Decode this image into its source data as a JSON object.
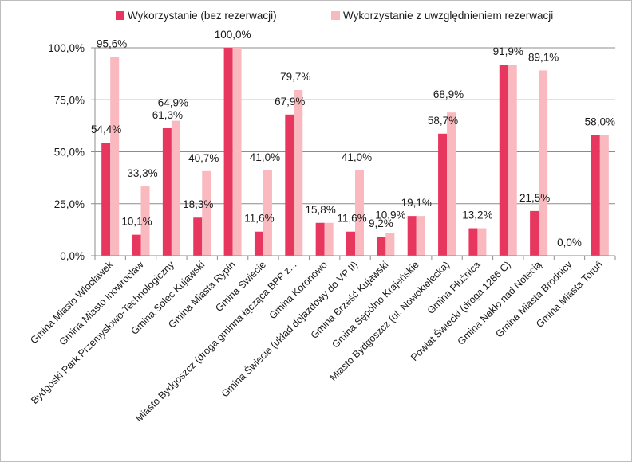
{
  "colors": {
    "series_1": "#e8375f",
    "series_2": "#f9b9bf",
    "grid": "#8c8c8c",
    "axis": "#8c8c8c"
  },
  "chart_data": {
    "type": "bar",
    "title": "",
    "xlabel": "",
    "ylabel": "",
    "ylim": [
      0,
      100
    ],
    "y_ticks": [
      "0,0%",
      "25,0%",
      "50,0%",
      "75,0%",
      "100,0%"
    ],
    "grid": "horizontal",
    "legend_position": "top",
    "categories": [
      "Gmina Miasto Włocławek",
      "Gmina Miasto Inowrocław",
      "Bydgoski Park Przemysłowo-Technologiczny",
      "Gmina Solec Kujawski",
      "Gmina Miasta Rypin",
      "Gmina Świecie",
      "Miasto Bydgoszcz (droga gminna łącząca BPP z...",
      "Gmina Koronowo",
      "Gmina Świecie (układ dojazdowy do VP II)",
      "Gmina Brześć Kujawski",
      "Gmina Sępólno Krajeńskie",
      "Miasto Bydgoszcz (ul. Nowokielecka)",
      "Gmina Płużnica",
      "Powiat Świecki (droga 1286 C)",
      "Gmina Nakło nad Notecią",
      "Gmina Miasta Brodnicy",
      "Gmina Miasta Toruń"
    ],
    "series": [
      {
        "name": "Wykorzystanie (bez rezerwacji)",
        "values": [
          54.4,
          10.1,
          61.3,
          18.3,
          100.0,
          11.6,
          67.9,
          15.8,
          11.6,
          9.2,
          19.1,
          58.7,
          13.2,
          91.9,
          21.5,
          0.0,
          58.0
        ]
      },
      {
        "name": "Wykorzystanie z uwzględnieniem rezerwacji",
        "values": [
          95.6,
          33.3,
          64.9,
          40.7,
          100.0,
          41.0,
          79.7,
          15.8,
          41.0,
          10.9,
          19.1,
          68.9,
          13.2,
          91.9,
          89.1,
          0.0,
          58.0
        ]
      }
    ],
    "data_labels": [
      {
        "category": "Gmina Miasto Włocławek",
        "series": "Wykorzystanie (bez rezerwacji)",
        "text": "54,4%"
      },
      {
        "category": "Gmina Miasto Włocławek",
        "series": "Wykorzystanie z uwzględnieniem rezerwacji",
        "text": "95,6%"
      },
      {
        "category": "Gmina Miasto Inowrocław",
        "series": "Wykorzystanie (bez rezerwacji)",
        "text": "10,1%"
      },
      {
        "category": "Gmina Miasto Inowrocław",
        "series": "Wykorzystanie z uwzględnieniem rezerwacji",
        "text": "33,3%"
      },
      {
        "category": "Bydgoski Park Przemysłowo-Technologiczny",
        "series": "Wykorzystanie (bez rezerwacji)",
        "text": "61,3%"
      },
      {
        "category": "Bydgoski Park Przemysłowo-Technologiczny",
        "series": "Wykorzystanie z uwzględnieniem rezerwacji",
        "text": "64,9%"
      },
      {
        "category": "Gmina Solec Kujawski",
        "series": "Wykorzystanie (bez rezerwacji)",
        "text": "18,3%"
      },
      {
        "category": "Gmina Solec Kujawski",
        "series": "Wykorzystanie z uwzględnieniem rezerwacji",
        "text": "40,7%"
      },
      {
        "category": "Gmina Miasta Rypin",
        "series": "Wykorzystanie (bez rezerwacji)",
        "text": "100,0%"
      },
      {
        "category": "Gmina Świecie",
        "series": "Wykorzystanie (bez rezerwacji)",
        "text": "11,6%"
      },
      {
        "category": "Gmina Świecie",
        "series": "Wykorzystanie z uwzględnieniem rezerwacji",
        "text": "41,0%"
      },
      {
        "category": "Miasto Bydgoszcz (droga gminna łącząca BPP z...",
        "series": "Wykorzystanie (bez rezerwacji)",
        "text": "67,9%"
      },
      {
        "category": "Miasto Bydgoszcz (droga gminna łącząca BPP z...",
        "series": "Wykorzystanie z uwzględnieniem rezerwacji",
        "text": "79,7%"
      },
      {
        "category": "Gmina Koronowo",
        "series": "Wykorzystanie (bez rezerwacji)",
        "text": "15,8%"
      },
      {
        "category": "Gmina Świecie (układ dojazdowy do VP II)",
        "series": "Wykorzystanie (bez rezerwacji)",
        "text": "11,6%"
      },
      {
        "category": "Gmina Świecie (układ dojazdowy do VP II)",
        "series": "Wykorzystanie z uwzględnieniem rezerwacji",
        "text": "41,0%"
      },
      {
        "category": "Gmina Brześć Kujawski",
        "series": "Wykorzystanie (bez rezerwacji)",
        "text": "9,2%"
      },
      {
        "category": "Gmina Brześć Kujawski",
        "series": "Wykorzystanie z uwzględnieniem rezerwacji",
        "text": "10,9%"
      },
      {
        "category": "Gmina Sępólno Krajeńskie",
        "series": "Wykorzystanie (bez rezerwacji)",
        "text": "19,1%"
      },
      {
        "category": "Miasto Bydgoszcz (ul. Nowokielecka)",
        "series": "Wykorzystanie (bez rezerwacji)",
        "text": "58,7%"
      },
      {
        "category": "Miasto Bydgoszcz (ul. Nowokielecka)",
        "series": "Wykorzystanie z uwzględnieniem rezerwacji",
        "text": "68,9%"
      },
      {
        "category": "Gmina Płużnica",
        "series": "Wykorzystanie (bez rezerwacji)",
        "text": "13,2%"
      },
      {
        "category": "Powiat Świecki (droga 1286 C)",
        "series": "Wykorzystanie (bez rezerwacji)",
        "text": "91,9%"
      },
      {
        "category": "Gmina Nakło nad Notecią",
        "series": "Wykorzystanie (bez rezerwacji)",
        "text": "21,5%"
      },
      {
        "category": "Gmina Nakło nad Notecią",
        "series": "Wykorzystanie z uwzględnieniem rezerwacji",
        "text": "89,1%"
      },
      {
        "category": "Gmina Miasta Brodnicy",
        "series": "Wykorzystanie (bez rezerwacji)",
        "text": "0,0%"
      },
      {
        "category": "Gmina Miasta Toruń",
        "series": "Wykorzystanie (bez rezerwacji)",
        "text": "58,0%"
      }
    ]
  }
}
